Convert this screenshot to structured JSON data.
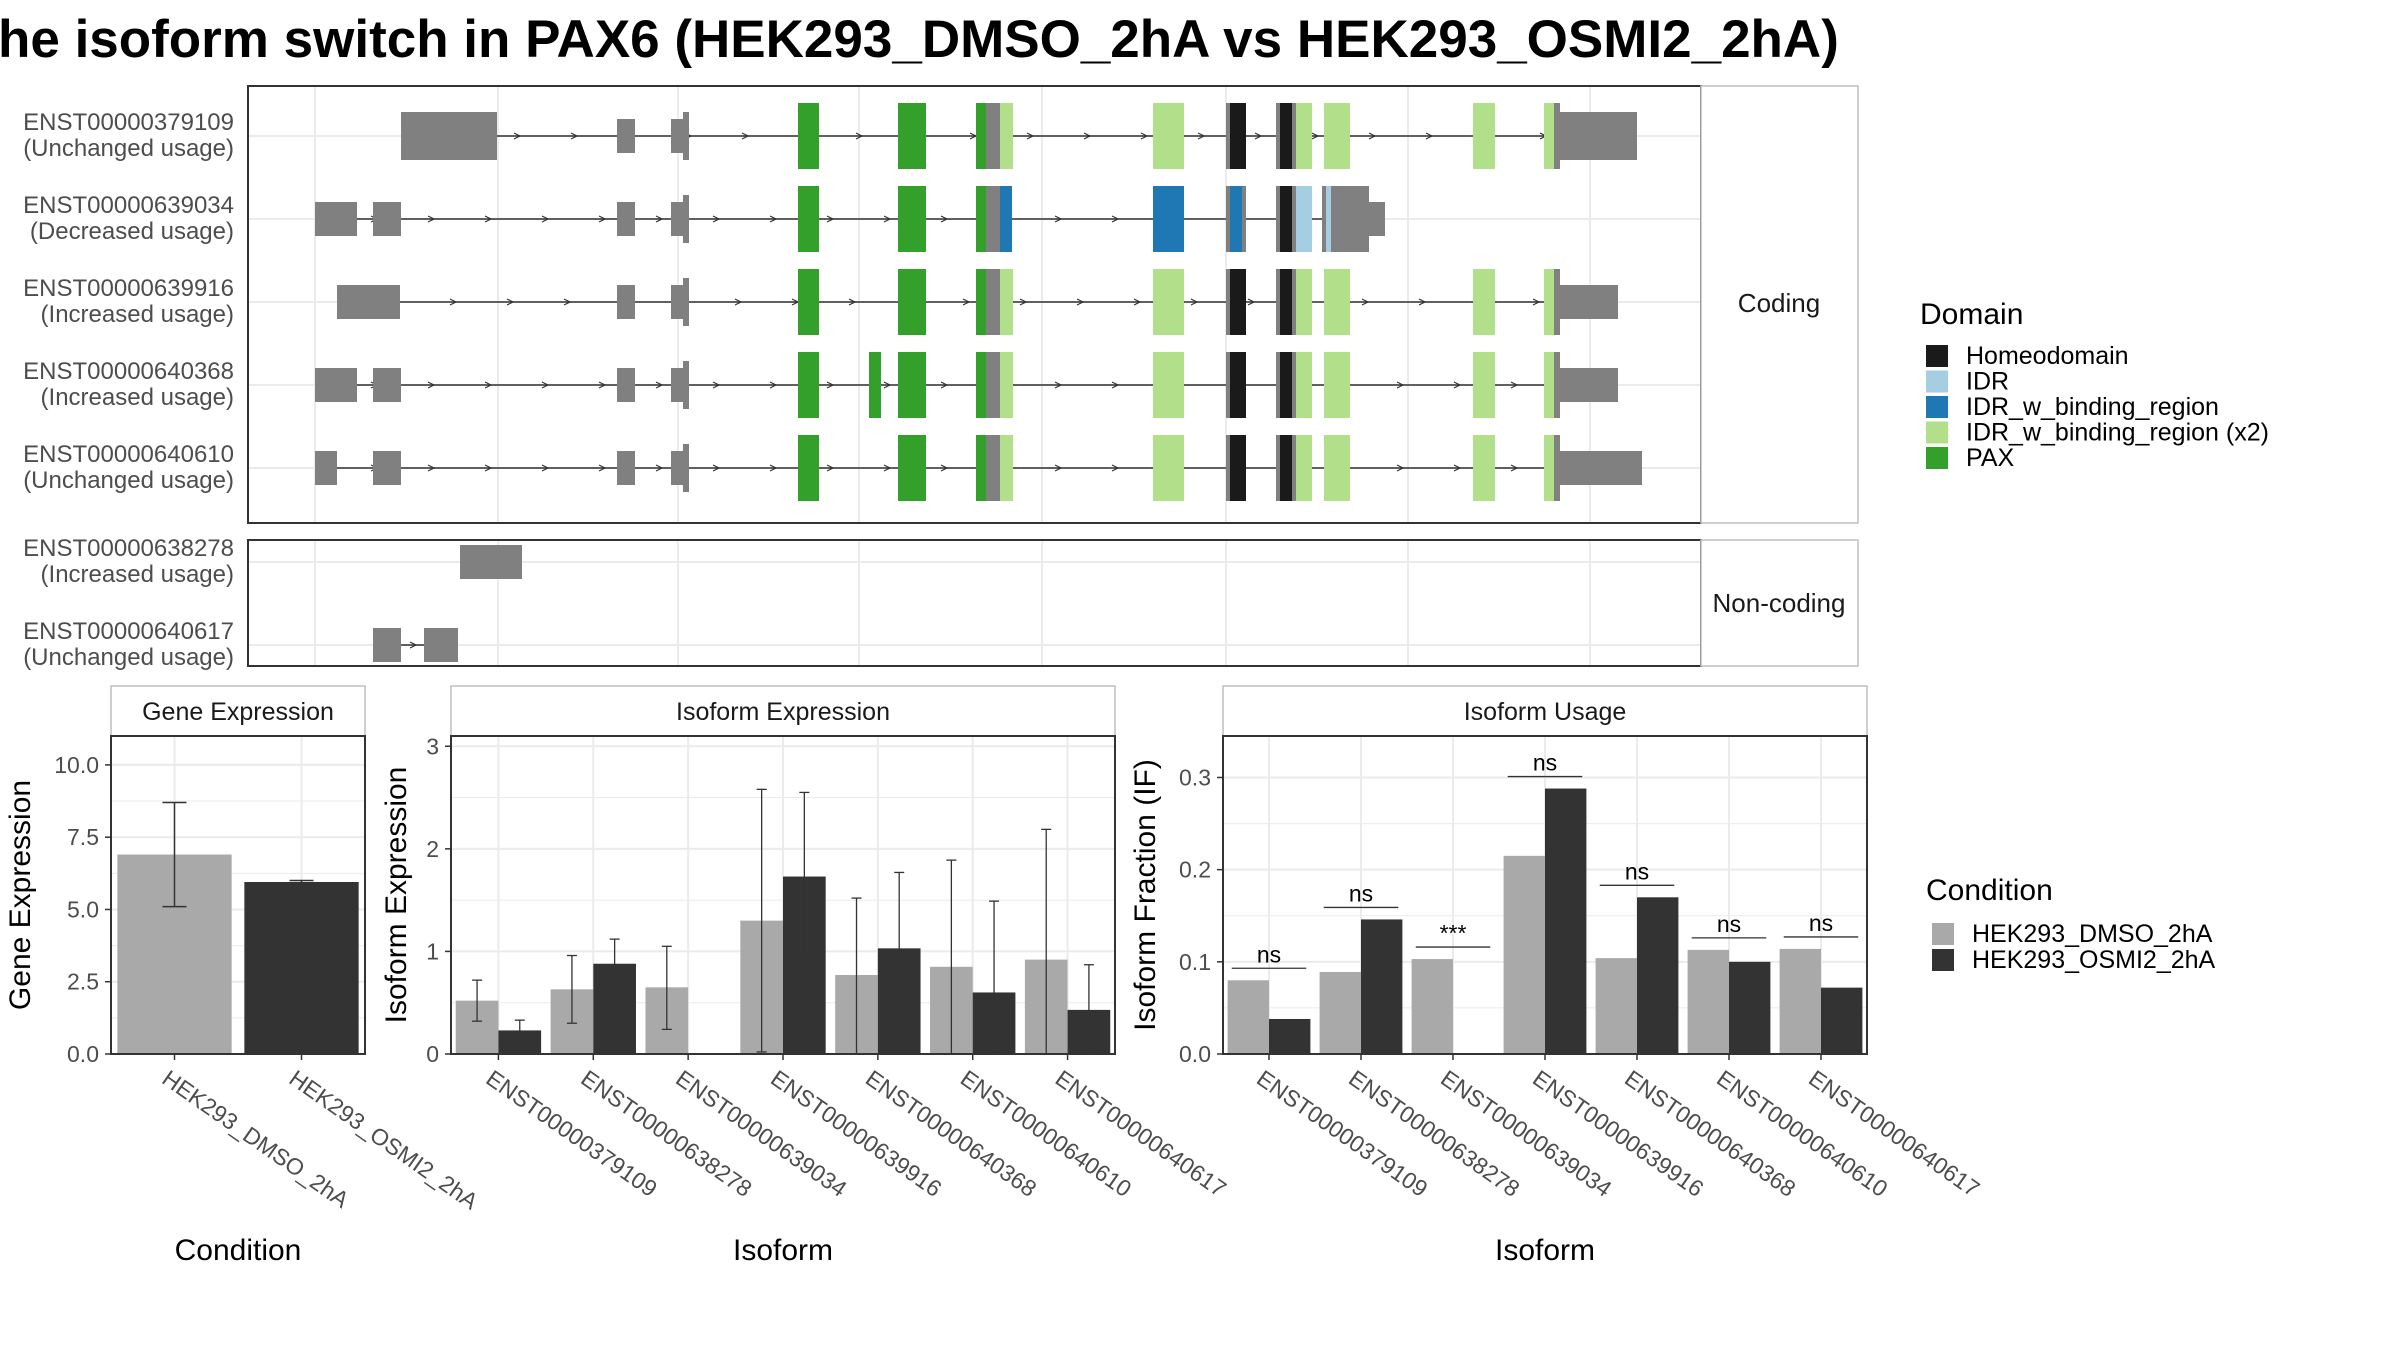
{
  "title": "he isoform switch in PAX6 (HEK293_DMSO_2hA vs HEK293_OSMI2_2hA)",
  "colors": {
    "exon": "#808080",
    "line": "#333333",
    "grid": "#ebebeb",
    "panel_border": "#333333",
    "strip_border": "#bfbfbf",
    "dmso": "#a9a9a9",
    "osmi2": "#333333"
  },
  "domain_legend": {
    "title": "Domain",
    "items": [
      {
        "label": "Homeodomain",
        "color": "#1a1a1a"
      },
      {
        "label": "IDR",
        "color": "#a6cee3"
      },
      {
        "label": "IDR_w_binding_region",
        "color": "#1f78b4"
      },
      {
        "label": "IDR_w_binding_region (x2)",
        "color": "#b2df8a"
      },
      {
        "label": "PAX",
        "color": "#33a02c"
      }
    ]
  },
  "condition_legend": {
    "title": "Condition",
    "items": [
      {
        "label": "HEK293_DMSO_2hA",
        "color": "#a9a9a9"
      },
      {
        "label": "HEK293_OSMI2_2hA",
        "color": "#333333"
      }
    ]
  },
  "strip_labels": {
    "coding": "Coding",
    "noncoding": "Non-coding"
  },
  "transcripts": {
    "coding": [
      {
        "id": "ENST00000379109",
        "usage": "(Unchanged usage)"
      },
      {
        "id": "ENST00000639034",
        "usage": "(Decreased usage)"
      },
      {
        "id": "ENST00000639916",
        "usage": "(Increased usage)"
      },
      {
        "id": "ENST00000640368",
        "usage": "(Increased usage)"
      },
      {
        "id": "ENST00000640610",
        "usage": "(Unchanged usage)"
      }
    ],
    "noncoding": [
      {
        "id": "ENST00000638278",
        "usage": "(Increased usage)"
      },
      {
        "id": "ENST00000640617",
        "usage": "(Unchanged usage)"
      }
    ]
  },
  "chart_data": [
    {
      "type": "bar",
      "title": "Gene Expression",
      "xlabel": "Condition",
      "ylabel": "Gene Expression",
      "categories": [
        "HEK293_DMSO_2hA",
        "HEK293_OSMI2_2hA"
      ],
      "values": [
        6.9,
        5.95
      ],
      "error_low": [
        5.1,
        5.9
      ],
      "error_high": [
        8.7,
        6.0
      ],
      "ylim": [
        0,
        11
      ],
      "yticks": [
        "0.0",
        "2.5",
        "5.0",
        "7.5",
        "10.0"
      ]
    },
    {
      "type": "bar",
      "title": "Isoform Expression",
      "xlabel": "Isoform",
      "ylabel": "Isoform Expression",
      "categories": [
        "ENST00000379109",
        "ENST00000638278",
        "ENST00000639034",
        "ENST00000639916",
        "ENST00000640368",
        "ENST00000640610",
        "ENST00000640617"
      ],
      "series": [
        {
          "name": "HEK293_DMSO_2hA",
          "values": [
            0.52,
            0.63,
            0.65,
            1.3,
            0.77,
            0.85,
            0.92
          ],
          "error_low": [
            0.32,
            0.3,
            0.24,
            0.02,
            0.0,
            0.0,
            0.0
          ],
          "error_high": [
            0.72,
            0.96,
            1.05,
            2.58,
            1.52,
            1.89,
            2.19
          ]
        },
        {
          "name": "HEK293_OSMI2_2hA",
          "values": [
            0.23,
            0.88,
            0.0,
            1.73,
            1.03,
            0.6,
            0.43
          ],
          "error_low": [
            0.13,
            0.65,
            0.0,
            0.92,
            0.29,
            0.0,
            0.0
          ],
          "error_high": [
            0.33,
            1.12,
            0.0,
            2.55,
            1.77,
            1.49,
            0.87
          ]
        }
      ],
      "ylim": [
        0,
        3.1
      ],
      "yticks": [
        "0",
        "1",
        "2",
        "3"
      ]
    },
    {
      "type": "bar",
      "title": "Isoform Usage",
      "xlabel": "Isoform",
      "ylabel": "Isoform Fraction (IF)",
      "categories": [
        "ENST00000379109",
        "ENST00000638278",
        "ENST00000639034",
        "ENST00000639916",
        "ENST00000640368",
        "ENST00000640610",
        "ENST00000640617"
      ],
      "series": [
        {
          "name": "HEK293_DMSO_2hA",
          "values": [
            0.08,
            0.089,
            0.103,
            0.215,
            0.104,
            0.113,
            0.114
          ]
        },
        {
          "name": "HEK293_OSMI2_2hA",
          "values": [
            0.038,
            0.146,
            0.0,
            0.288,
            0.17,
            0.1,
            0.072
          ]
        }
      ],
      "significance": [
        "ns",
        "ns",
        "***",
        "ns",
        "ns",
        "ns",
        "ns"
      ],
      "ylim": [
        0,
        0.345
      ],
      "yticks": [
        "0.0",
        "0.1",
        "0.2",
        "0.3"
      ]
    }
  ]
}
